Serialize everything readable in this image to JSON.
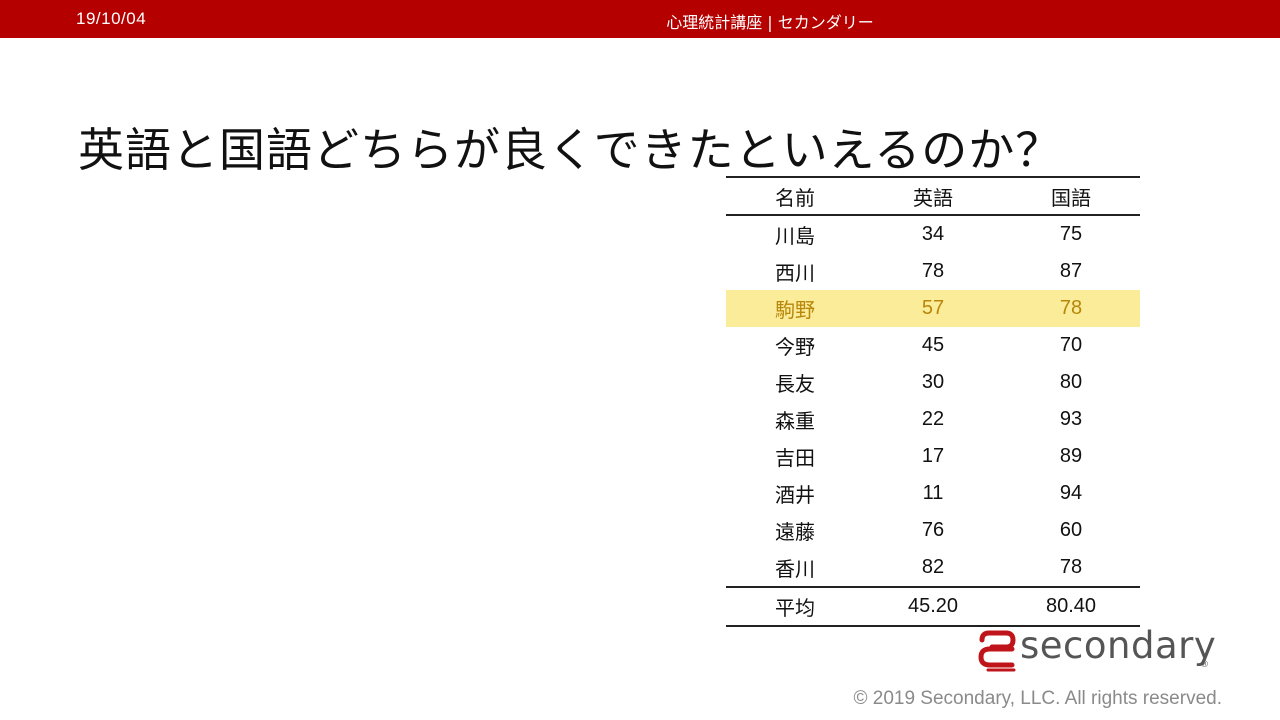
{
  "header": {
    "date": "19/10/04",
    "title": "心理統計講座 | セカンダリー"
  },
  "slide": {
    "title": "英語と国語どちらが良くできたといえるのか？"
  },
  "table": {
    "headers": [
      "名前",
      "英語",
      "国語"
    ],
    "rows": [
      {
        "name": "川島",
        "english": "34",
        "japanese": "75"
      },
      {
        "name": "西川",
        "english": "78",
        "japanese": "87"
      },
      {
        "name": "駒野",
        "english": "57",
        "japanese": "78"
      },
      {
        "name": "今野",
        "english": "45",
        "japanese": "70"
      },
      {
        "name": "長友",
        "english": "30",
        "japanese": "80"
      },
      {
        "name": "森重",
        "english": "22",
        "japanese": "93"
      },
      {
        "name": "吉田",
        "english": "17",
        "japanese": "89"
      },
      {
        "name": "酒井",
        "english": "11",
        "japanese": "94"
      },
      {
        "name": "遠藤",
        "english": "76",
        "japanese": "60"
      },
      {
        "name": "香川",
        "english": "82",
        "japanese": "78"
      }
    ],
    "highlighted_row": 2,
    "footer": {
      "name": "平均",
      "english": "45.20",
      "japanese": "80.40"
    }
  },
  "logo": {
    "text": "secondary",
    "registered": "®",
    "icon": "secondary-logo-icon"
  },
  "copyright": "© 2019 Secondary, LLC. All rights reserved.",
  "colors": {
    "header_bg": "#b50000",
    "highlight_bg": "#fbec9a",
    "highlight_text": "#b8860b",
    "logo_red": "#c0141b"
  }
}
